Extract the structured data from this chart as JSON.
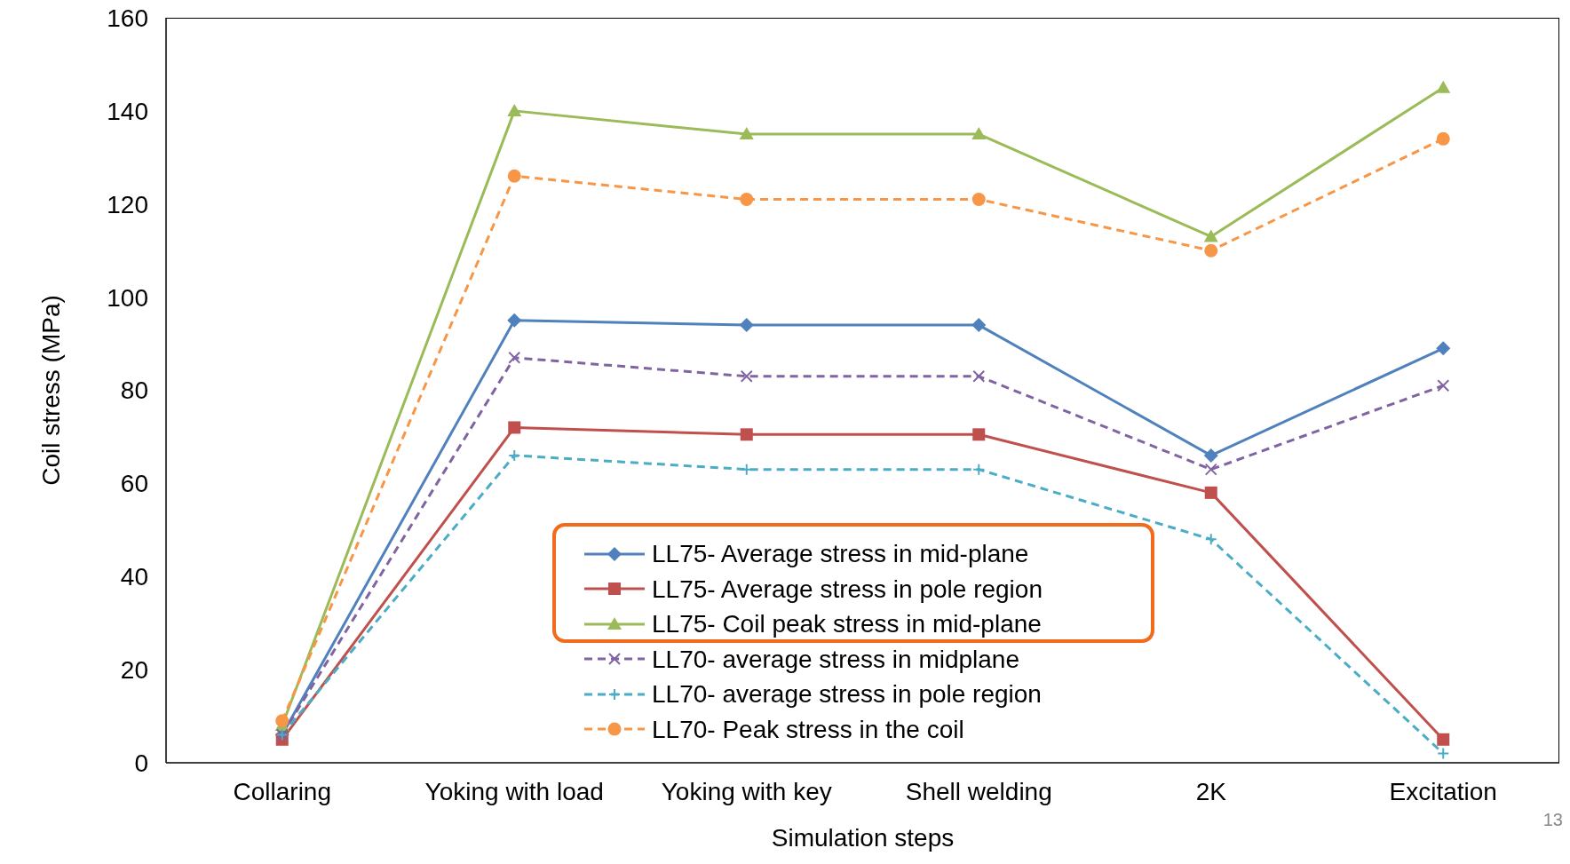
{
  "chart_data": {
    "type": "line",
    "xlabel": "Simulation steps",
    "ylabel": "Coil stress (MPa)",
    "categories": [
      "Collaring",
      "Yoking with load",
      "Yoking with key",
      "Shell welding",
      "2K",
      "Excitation"
    ],
    "ylim": [
      0,
      160
    ],
    "yticks": [
      0,
      20,
      40,
      60,
      80,
      100,
      120,
      140,
      160
    ],
    "legend": "bottom",
    "annotations": [
      "13"
    ],
    "series": [
      {
        "name": "LL75- Average stress in mid-plane",
        "color": "#4f81bd",
        "marker": "diamond",
        "line_style": "solid",
        "values": [
          6,
          95,
          94,
          94,
          66,
          89
        ]
      },
      {
        "name": "LL75- Average stress in pole region",
        "color": "#c0504d",
        "marker": "square",
        "line_style": "solid",
        "values": [
          5,
          72,
          70.5,
          70.5,
          58,
          5
        ]
      },
      {
        "name": "LL75- Coil peak stress in mid-plane",
        "color": "#9bbb59",
        "marker": "triangle",
        "line_style": "solid",
        "values": [
          8,
          140,
          135,
          135,
          113,
          145
        ]
      },
      {
        "name": "LL70- average stress in midplane",
        "color": "#8064a2",
        "marker": "cross",
        "line_style": "dashed",
        "values": [
          6,
          87,
          83,
          83,
          63,
          81
        ]
      },
      {
        "name": "LL70- average stress in pole region",
        "color": "#4bacc6",
        "marker": "plus",
        "line_style": "dashed",
        "values": [
          6,
          66,
          63,
          63,
          48,
          2
        ]
      },
      {
        "name": "LL70- Peak stress in the coil",
        "color": "#f79646",
        "marker": "circle",
        "line_style": "dashed",
        "values": [
          9,
          126,
          121,
          121,
          110,
          134
        ]
      }
    ]
  }
}
